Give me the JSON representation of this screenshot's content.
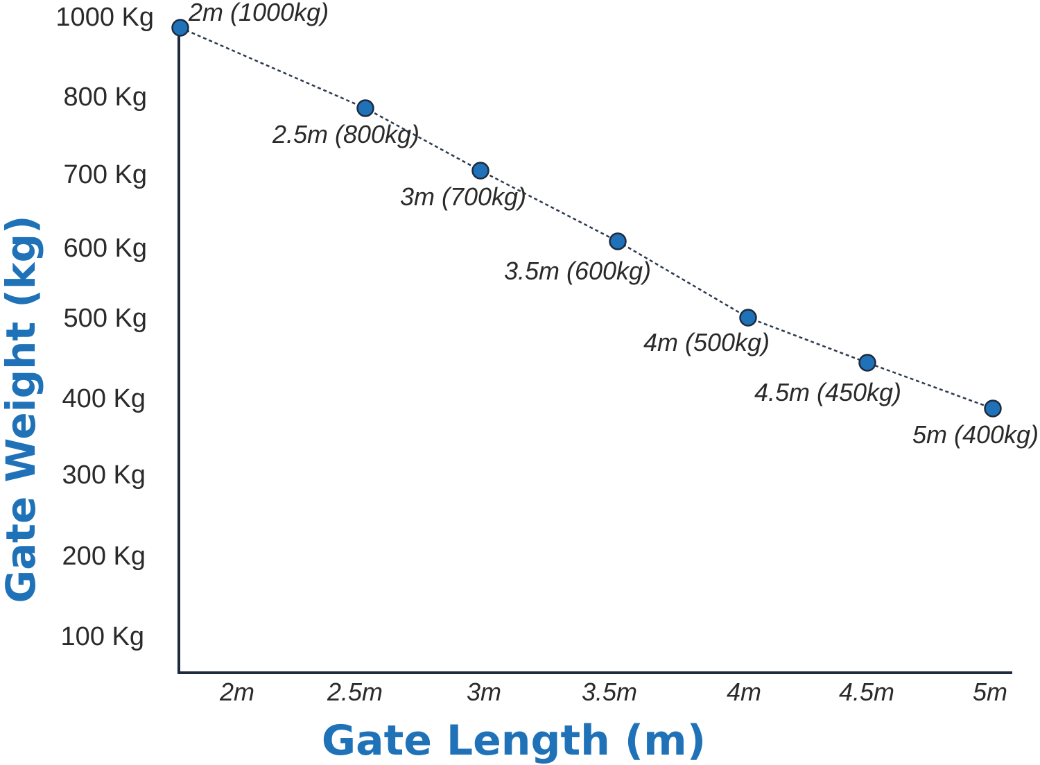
{
  "chart_data": {
    "type": "line",
    "xlabel": "Gate Length (m)",
    "ylabel": "Gate Weight (kg)",
    "x": [
      2,
      2.5,
      3,
      3.5,
      4,
      4.5,
      5
    ],
    "x_tick_labels": [
      "2m",
      "2.5m",
      "3m",
      "3.5m",
      "4m",
      "4.5m",
      "5m"
    ],
    "y_tick_labels": [
      "1000 Kg",
      "800 Kg",
      "700 Kg",
      "600 Kg",
      "500 Kg",
      "400 Kg",
      "300 Kg",
      "200 Kg",
      "100 Kg"
    ],
    "series": [
      {
        "values": [
          1000,
          800,
          700,
          600,
          500,
          450,
          400
        ],
        "labels": [
          "2m (1000kg)",
          "2.5m (800kg)",
          "3m (700kg)",
          "3.5m (600kg)",
          "4m (500kg)",
          "4.5m (450kg)",
          "5m (400kg)"
        ]
      }
    ],
    "grid": false,
    "line_style": "dotted",
    "colors": {
      "marker": "#1f72b8",
      "line": "#2c3a4f",
      "axis": "#1e2a3e",
      "title": "#1f72b8"
    }
  }
}
